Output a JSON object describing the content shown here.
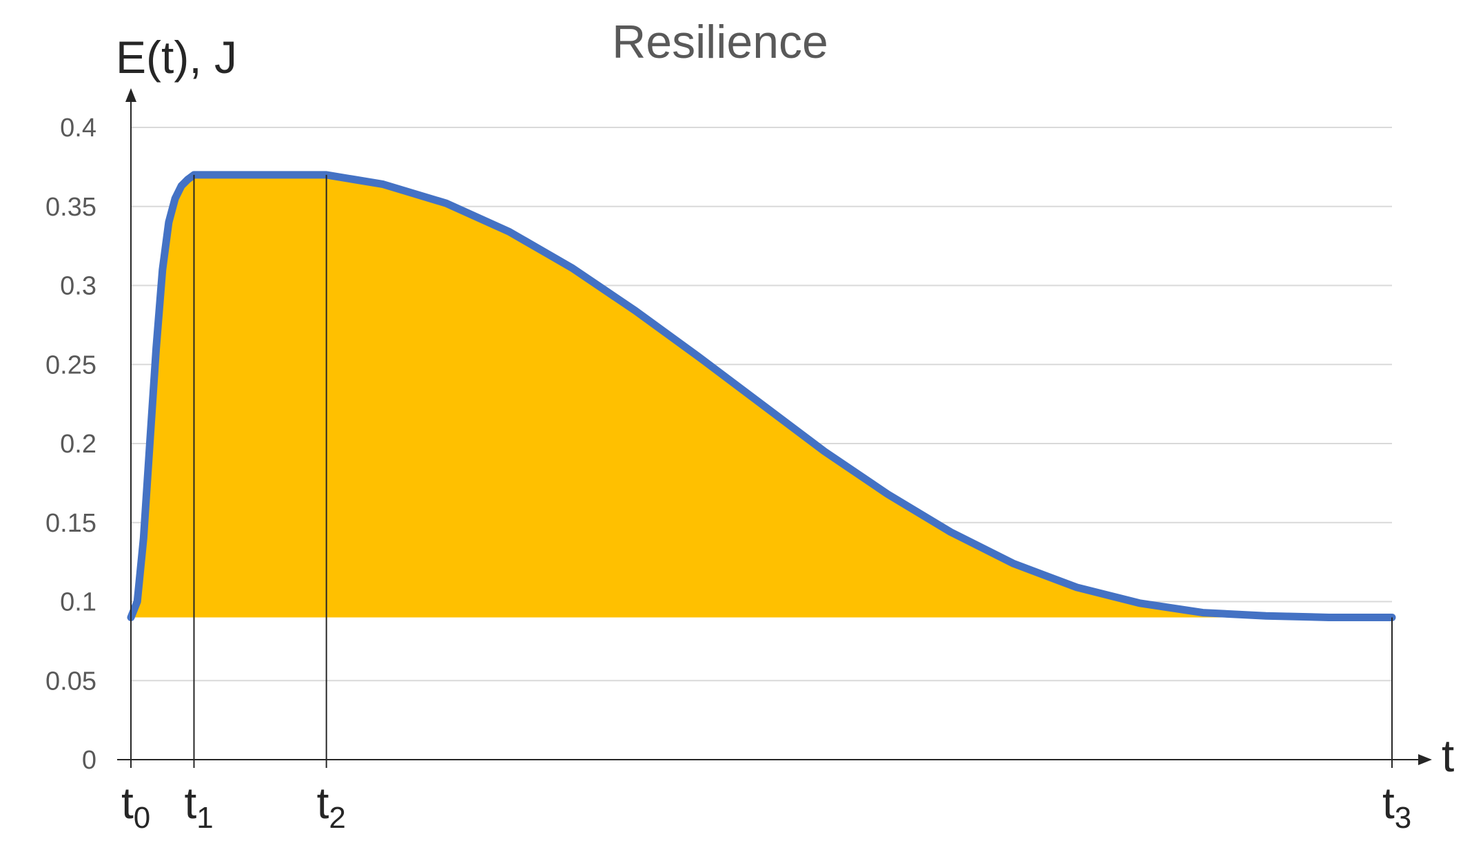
{
  "chart_data": {
    "type": "area",
    "title": "Resilience",
    "ylabel": "E(t), J",
    "xlabel": "t",
    "ylim": [
      0,
      0.4
    ],
    "yticks": [
      "0",
      "0.05",
      "0.1",
      "0.15",
      "0.2",
      "0.25",
      "0.3",
      "0.35",
      "0.4"
    ],
    "xlim": [
      0,
      100
    ],
    "grid": true,
    "baseline": 0.09,
    "markers": [
      {
        "label": "t",
        "sub": "0",
        "x": 0
      },
      {
        "label": "t",
        "sub": "1",
        "x": 5
      },
      {
        "label": "t",
        "sub": "2",
        "x": 15.5
      },
      {
        "label": "t",
        "sub": "3",
        "x": 100
      }
    ],
    "series": [
      {
        "x": [
          0,
          0.5,
          1,
          1.5,
          2,
          2.5,
          3,
          3.5,
          4,
          4.5,
          5,
          10,
          15.5,
          20,
          25,
          30,
          35,
          40,
          45,
          50,
          55,
          60,
          65,
          70,
          75,
          80,
          85,
          90,
          95,
          100
        ],
        "y": [
          0.09,
          0.1,
          0.14,
          0.2,
          0.26,
          0.31,
          0.34,
          0.355,
          0.363,
          0.367,
          0.37,
          0.37,
          0.37,
          0.364,
          0.352,
          0.334,
          0.311,
          0.284,
          0.255,
          0.225,
          0.195,
          0.168,
          0.144,
          0.124,
          0.109,
          0.099,
          0.093,
          0.091,
          0.09,
          0.09
        ],
        "color": "#4472C4",
        "fill": "#FFC000"
      }
    ]
  }
}
